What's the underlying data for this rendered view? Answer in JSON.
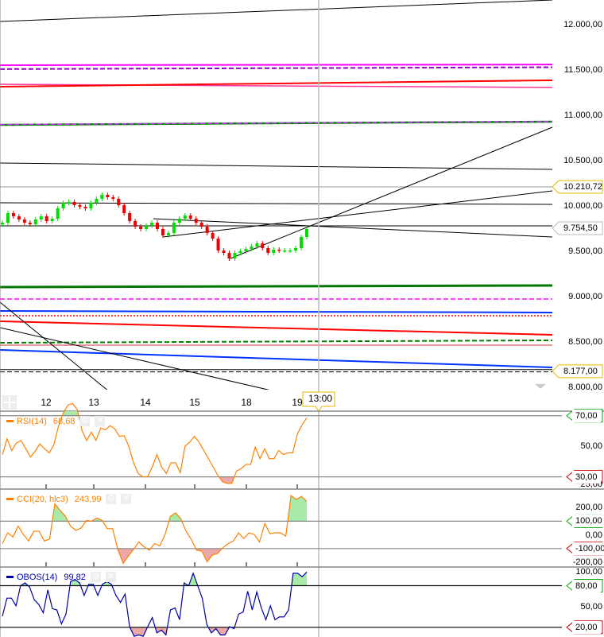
{
  "chart_data": {
    "type": "candlestick",
    "x_axis": {
      "tick_labels": [
        "12",
        "13",
        "14",
        "15",
        "18",
        "19"
      ],
      "cursor_label": "13:00"
    },
    "price_axis": {
      "ylim": [
        7900,
        12300
      ],
      "ticks": [
        {
          "v": 12000,
          "label": "12.000,00"
        },
        {
          "v": 11500,
          "label": "11.500,00"
        },
        {
          "v": 11000,
          "label": "11.000,00"
        },
        {
          "v": 10500,
          "label": "10.500,00"
        },
        {
          "v": 10000,
          "label": "10.000,00"
        },
        {
          "v": 9500,
          "label": "9.500,00"
        },
        {
          "v": 9000,
          "label": "9.000,00"
        },
        {
          "v": 8500,
          "label": "8.500,00"
        },
        {
          "v": 8000,
          "label": "8.000,00"
        }
      ],
      "flags": [
        {
          "v": 10210.72,
          "label": "10.210,72",
          "color": "#e6b800"
        },
        {
          "v": 9754.5,
          "label": "9.754,50",
          "color": "#bbbbbb"
        },
        {
          "v": 8177,
          "label": "8.177,00",
          "color": "#e6b800"
        }
      ]
    },
    "closes": [
      9816,
      9921,
      9886,
      9851,
      9816,
      9798,
      9851,
      9886,
      9833,
      9860,
      9974,
      10035,
      10044,
      10009,
      9991,
      9974,
      10035,
      10079,
      10123,
      10096,
      10079,
      10009,
      9921,
      9833,
      9772,
      9746,
      9781,
      9816,
      9746,
      9675,
      9702,
      9816,
      9860,
      9895,
      9860,
      9816,
      9772,
      9702,
      9640,
      9509,
      9482,
      9421,
      9482,
      9500,
      9526,
      9553,
      9588,
      9535,
      9482,
      9518,
      9509,
      9509,
      9509,
      9535,
      9658,
      9746
    ],
    "drawings": [
      {
        "p1": 12035,
        "p2": 12272,
        "color": "#000000",
        "style": "solid",
        "w": 1
      },
      {
        "p1": 11553,
        "p2": 11560,
        "color": "#ff00ff",
        "style": "solid",
        "w": 2
      },
      {
        "p1": 11510,
        "p2": 11530,
        "color": "#9900cc",
        "style": "dashed",
        "w": 2
      },
      {
        "p1": 11342,
        "p2": 11307,
        "color": "#ff3399",
        "style": "solid",
        "w": 1.5
      },
      {
        "p1": 11316,
        "p2": 11386,
        "color": "#ff0000",
        "style": "solid",
        "w": 2
      },
      {
        "p1": 10895,
        "p2": 10930,
        "color": "#008000",
        "style": "solid",
        "w": 2.5
      },
      {
        "p1": 10898,
        "p2": 10932,
        "color": "#cc33ff",
        "style": "dashed",
        "w": 1.5
      },
      {
        "p1": 10474,
        "p2": 10404,
        "color": "#000000",
        "style": "solid",
        "w": 1
      },
      {
        "p1": 10210,
        "p2": 10210,
        "color": "#999999",
        "style": "solid",
        "w": 1
      },
      {
        "p1": 10035,
        "p2": 10018,
        "color": "#000000",
        "style": "solid",
        "w": 1
      },
      {
        "p1": 9781,
        "p2": 9781,
        "color": "#000000",
        "style": "solid",
        "w": 1
      },
      {
        "p1": 9105,
        "p2": 9123,
        "color": "#007700",
        "style": "solid",
        "w": 3
      },
      {
        "p1": 8974,
        "p2": 8974,
        "color": "#ff00ff",
        "style": "dashed",
        "w": 1.5
      },
      {
        "p1": 8842,
        "p2": 8825,
        "color": "#0033ff",
        "style": "solid",
        "w": 2
      },
      {
        "p1": 8790,
        "p2": 8790,
        "color": "#ff0000",
        "style": "dotted",
        "w": 1.5
      },
      {
        "p1": 8728,
        "p2": 8579,
        "color": "#ff0000",
        "style": "solid",
        "w": 2
      },
      {
        "p1": 8491,
        "p2": 8518,
        "color": "#008000",
        "style": "dashed",
        "w": 2
      },
      {
        "p1": 8465,
        "p2": 8465,
        "color": "#cc3333",
        "style": "solid",
        "w": 1
      },
      {
        "p1": 8412,
        "p2": 8219,
        "color": "#0033ff",
        "style": "solid",
        "w": 2
      },
      {
        "p1": 8195,
        "p2": 8195,
        "color": "#000000",
        "style": "solid",
        "w": 1
      },
      {
        "p1": 8170,
        "p2": 8170,
        "color": "#000000",
        "style": "dashed",
        "w": 1
      }
    ],
    "indicators": [
      {
        "name": "RSI(14)",
        "value": "68,68",
        "color": "#ff8000",
        "levels": [
          {
            "v": 70,
            "label": "70,00",
            "color": "#00aa00",
            "fill": "above"
          },
          {
            "v": 30,
            "label": "30,00",
            "color": "#cc0000",
            "fill": "below"
          }
        ],
        "ticks": [
          {
            "v": 50,
            "label": "50,00"
          },
          {
            "v": 25,
            "label": "25,00"
          }
        ],
        "ylim": [
          22,
          73
        ],
        "values": [
          44.6,
          54.9,
          47.3,
          52.2,
          53.8,
          48.4,
          43,
          46.8,
          51.6,
          48.4,
          45.7,
          51,
          63.5,
          71.6,
          77,
          78,
          74,
          60.3,
          53.8,
          59.2,
          53.8,
          61.9,
          60.8,
          63.5,
          61.4,
          56.5,
          57,
          50,
          39.2,
          32.2,
          30,
          30,
          36.5,
          44.6,
          36.5,
          32.2,
          39.2,
          39.2,
          32.7,
          50,
          52.7,
          56.5,
          52.7,
          47.3,
          41.9,
          36.5,
          31,
          26.8,
          25.7,
          25.7,
          33.8,
          35.4,
          38.1,
          38.1,
          49.5,
          41.9,
          48.4,
          41.9,
          41.9,
          47.3,
          44.6,
          45.7,
          45.7,
          58.1,
          64,
          68.68
        ]
      },
      {
        "name": "CCI(20, hlc3)",
        "value": "243,99",
        "color": "#ff8000",
        "levels": [
          {
            "v": 100,
            "label": "100,00",
            "color": "#00aa00",
            "fill": "above"
          },
          {
            "v": -100,
            "label": "-100,00",
            "color": "#cc0000",
            "fill": "below"
          }
        ],
        "ticks": [
          {
            "v": 200,
            "label": "200,00"
          },
          {
            "v": 0,
            "label": "0,00"
          },
          {
            "v": -200,
            "label": "-200,00"
          }
        ],
        "ylim": [
          -235,
          335
        ],
        "values": [
          -64,
          15,
          -15,
          64,
          3,
          -45,
          27,
          27,
          -45,
          -30,
          227,
          179,
          136,
          64,
          33,
          50,
          106,
          100,
          124,
          106,
          45,
          45,
          -106,
          -209,
          -155,
          -106,
          -52,
          -88,
          -112,
          -64,
          -80,
          3,
          136,
          161,
          118,
          27,
          -33,
          -112,
          -118,
          -197,
          -148,
          -136,
          -94,
          -64,
          -45,
          15,
          -27,
          15,
          3,
          -52,
          82,
          9,
          15,
          15,
          -9,
          288,
          258,
          282,
          243.99
        ]
      },
      {
        "name": "OBOS(14)",
        "value": "99,82",
        "color": "#0000aa",
        "levels": [
          {
            "v": 80,
            "label": "80,00",
            "color": "#00aa00",
            "fill": "above"
          },
          {
            "v": 20,
            "label": "20,00",
            "color": "#cc0000",
            "fill": "below"
          }
        ],
        "ticks": [
          {
            "v": 100,
            "label": "100,00"
          },
          {
            "v": 50,
            "label": "50,00"
          }
        ],
        "ylim": [
          6,
          107
        ],
        "values": [
          36,
          62,
          62,
          51,
          80,
          84,
          78,
          60,
          53,
          41,
          74,
          47,
          45,
          25,
          39,
          86,
          89,
          84,
          66,
          82,
          82,
          66,
          82,
          86,
          82,
          66,
          56,
          68,
          21,
          7,
          9,
          7,
          21,
          34,
          12,
          16,
          9,
          45,
          48,
          31,
          84,
          80,
          98,
          80,
          62,
          24,
          12,
          18,
          9,
          9,
          21,
          18,
          39,
          42,
          72,
          45,
          71,
          48,
          31,
          51,
          31,
          35,
          35,
          45,
          98,
          98,
          93,
          99.82
        ]
      }
    ]
  }
}
